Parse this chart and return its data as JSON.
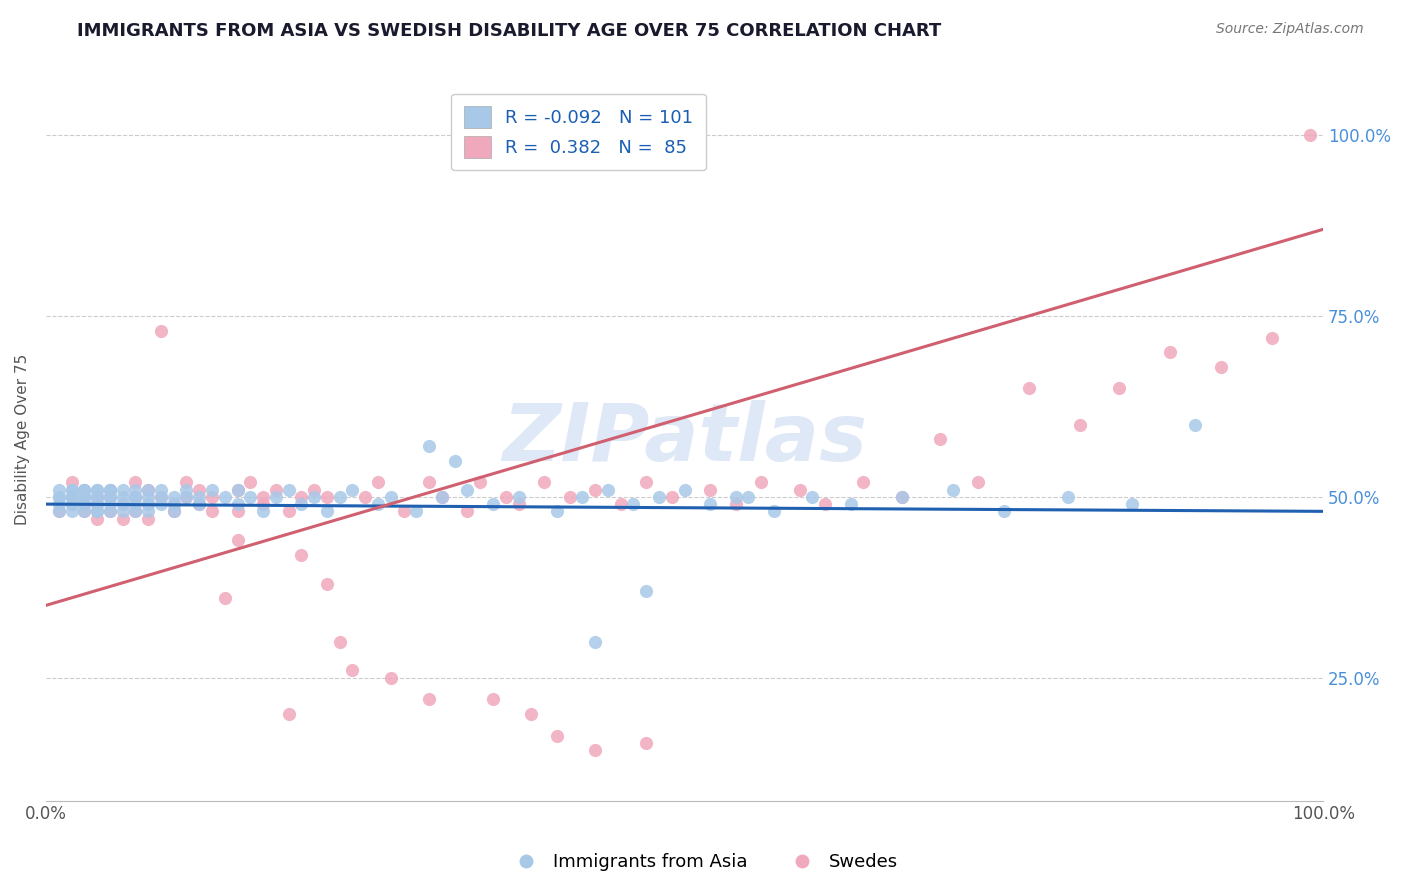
{
  "title": "IMMIGRANTS FROM ASIA VS SWEDISH DISABILITY AGE OVER 75 CORRELATION CHART",
  "source_text": "Source: ZipAtlas.com",
  "ylabel": "Disability Age Over 75",
  "xlim": [
    0.0,
    1.0
  ],
  "ylim": [
    0.08,
    1.08
  ],
  "legend_r1": "-0.092",
  "legend_n1": "101",
  "legend_r2": "0.382",
  "legend_n2": "85",
  "blue_color": "#a8c8e8",
  "pink_color": "#f0a8bc",
  "blue_line_color": "#2060b0",
  "pink_line_color": "#d06070",
  "watermark": "ZIPatlas",
  "title_fontsize": 13,
  "blue_line": [
    0.49,
    0.48
  ],
  "pink_line": [
    0.35,
    0.87
  ],
  "blue_scatter_x": [
    0.01,
    0.01,
    0.01,
    0.01,
    0.01,
    0.02,
    0.02,
    0.02,
    0.02,
    0.02,
    0.02,
    0.02,
    0.02,
    0.03,
    0.03,
    0.03,
    0.03,
    0.03,
    0.03,
    0.03,
    0.03,
    0.04,
    0.04,
    0.04,
    0.04,
    0.04,
    0.04,
    0.04,
    0.04,
    0.04,
    0.05,
    0.05,
    0.05,
    0.05,
    0.05,
    0.05,
    0.06,
    0.06,
    0.06,
    0.06,
    0.07,
    0.07,
    0.07,
    0.07,
    0.07,
    0.08,
    0.08,
    0.08,
    0.08,
    0.09,
    0.09,
    0.09,
    0.1,
    0.1,
    0.1,
    0.11,
    0.11,
    0.12,
    0.12,
    0.13,
    0.14,
    0.15,
    0.15,
    0.16,
    0.17,
    0.18,
    0.19,
    0.2,
    0.21,
    0.22,
    0.23,
    0.24,
    0.26,
    0.27,
    0.29,
    0.31,
    0.33,
    0.35,
    0.37,
    0.4,
    0.42,
    0.44,
    0.46,
    0.48,
    0.5,
    0.52,
    0.54,
    0.57,
    0.6,
    0.63,
    0.67,
    0.71,
    0.75,
    0.8,
    0.85,
    0.3,
    0.32,
    0.55,
    0.47,
    0.43,
    0.9
  ],
  "blue_scatter_y": [
    0.5,
    0.5,
    0.49,
    0.51,
    0.48,
    0.5,
    0.51,
    0.49,
    0.5,
    0.48,
    0.51,
    0.5,
    0.49,
    0.5,
    0.51,
    0.49,
    0.5,
    0.48,
    0.51,
    0.5,
    0.49,
    0.5,
    0.51,
    0.49,
    0.48,
    0.5,
    0.51,
    0.49,
    0.5,
    0.48,
    0.51,
    0.5,
    0.49,
    0.48,
    0.5,
    0.51,
    0.5,
    0.49,
    0.51,
    0.48,
    0.5,
    0.49,
    0.51,
    0.48,
    0.5,
    0.49,
    0.51,
    0.5,
    0.48,
    0.5,
    0.49,
    0.51,
    0.5,
    0.49,
    0.48,
    0.5,
    0.51,
    0.49,
    0.5,
    0.51,
    0.5,
    0.49,
    0.51,
    0.5,
    0.48,
    0.5,
    0.51,
    0.49,
    0.5,
    0.48,
    0.5,
    0.51,
    0.49,
    0.5,
    0.48,
    0.5,
    0.51,
    0.49,
    0.5,
    0.48,
    0.5,
    0.51,
    0.49,
    0.5,
    0.51,
    0.49,
    0.5,
    0.48,
    0.5,
    0.49,
    0.5,
    0.51,
    0.48,
    0.5,
    0.49,
    0.57,
    0.55,
    0.5,
    0.37,
    0.3,
    0.6
  ],
  "pink_scatter_x": [
    0.01,
    0.02,
    0.02,
    0.03,
    0.03,
    0.03,
    0.04,
    0.04,
    0.04,
    0.05,
    0.05,
    0.05,
    0.06,
    0.06,
    0.07,
    0.07,
    0.07,
    0.08,
    0.08,
    0.08,
    0.09,
    0.09,
    0.1,
    0.1,
    0.11,
    0.11,
    0.12,
    0.12,
    0.13,
    0.13,
    0.14,
    0.15,
    0.15,
    0.16,
    0.17,
    0.17,
    0.18,
    0.19,
    0.2,
    0.21,
    0.22,
    0.23,
    0.24,
    0.25,
    0.26,
    0.28,
    0.3,
    0.31,
    0.33,
    0.34,
    0.36,
    0.37,
    0.39,
    0.41,
    0.43,
    0.45,
    0.47,
    0.49,
    0.52,
    0.54,
    0.56,
    0.59,
    0.61,
    0.64,
    0.67,
    0.7,
    0.73,
    0.77,
    0.81,
    0.84,
    0.88,
    0.92,
    0.96,
    0.99,
    0.15,
    0.2,
    0.22,
    0.27,
    0.19,
    0.3,
    0.35,
    0.38,
    0.4,
    0.43,
    0.47
  ],
  "pink_scatter_y": [
    0.48,
    0.5,
    0.52,
    0.49,
    0.48,
    0.51,
    0.5,
    0.49,
    0.47,
    0.5,
    0.51,
    0.48,
    0.49,
    0.47,
    0.5,
    0.52,
    0.48,
    0.49,
    0.47,
    0.51,
    0.5,
    0.73,
    0.49,
    0.48,
    0.5,
    0.52,
    0.51,
    0.49,
    0.5,
    0.48,
    0.36,
    0.51,
    0.48,
    0.52,
    0.5,
    0.49,
    0.51,
    0.48,
    0.5,
    0.51,
    0.5,
    0.3,
    0.26,
    0.5,
    0.52,
    0.48,
    0.52,
    0.5,
    0.48,
    0.52,
    0.5,
    0.49,
    0.52,
    0.5,
    0.51,
    0.49,
    0.52,
    0.5,
    0.51,
    0.49,
    0.52,
    0.51,
    0.49,
    0.52,
    0.5,
    0.58,
    0.52,
    0.65,
    0.6,
    0.65,
    0.7,
    0.68,
    0.72,
    1.0,
    0.44,
    0.42,
    0.38,
    0.25,
    0.2,
    0.22,
    0.22,
    0.2,
    0.17,
    0.15,
    0.16
  ]
}
